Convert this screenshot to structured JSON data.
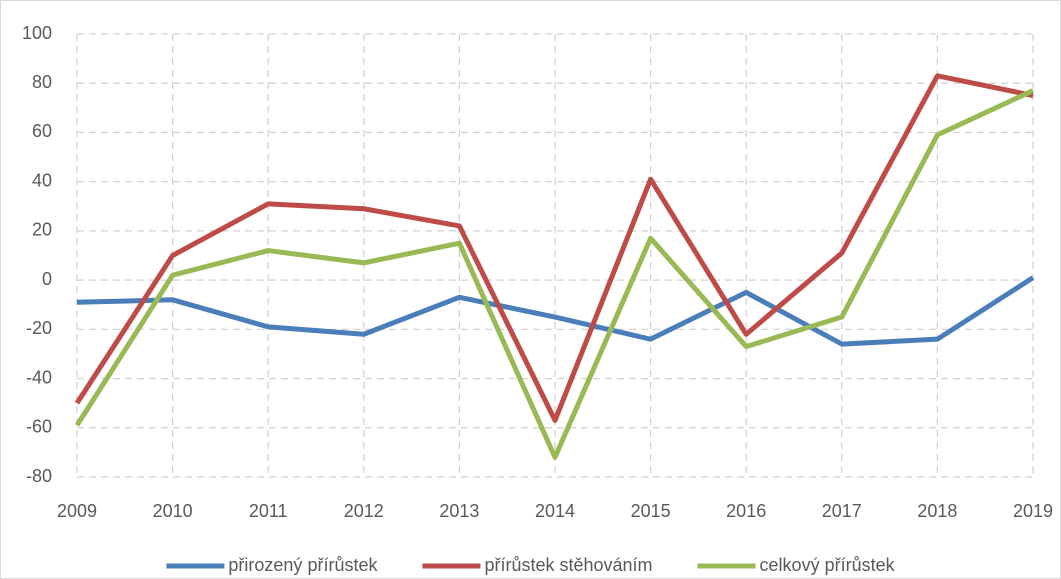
{
  "chart_data": {
    "type": "line",
    "categories": [
      "2009",
      "2010",
      "2011",
      "2012",
      "2013",
      "2014",
      "2015",
      "2016",
      "2017",
      "2018",
      "2019"
    ],
    "series": [
      {
        "name": "přirozený přírůstek",
        "color": "#4a7ebb",
        "values": [
          -9,
          -8,
          -19,
          -22,
          -7,
          -15,
          -24,
          -5,
          -26,
          -24,
          1
        ]
      },
      {
        "name": "přírůstek stěhováním",
        "color": "#be4b48",
        "values": [
          -50,
          10,
          31,
          29,
          22,
          -57,
          41,
          -22,
          11,
          83,
          75
        ]
      },
      {
        "name": "celkový přírůstek",
        "color": "#98b954",
        "values": [
          -59,
          2,
          12,
          7,
          15,
          -72,
          17,
          -27,
          -15,
          59,
          77
        ]
      }
    ],
    "ylim": [
      -80,
      100
    ],
    "yticks": [
      -80,
      -60,
      -40,
      -20,
      0,
      20,
      40,
      60,
      80,
      100
    ],
    "grid": true,
    "legend": "bottom"
  }
}
